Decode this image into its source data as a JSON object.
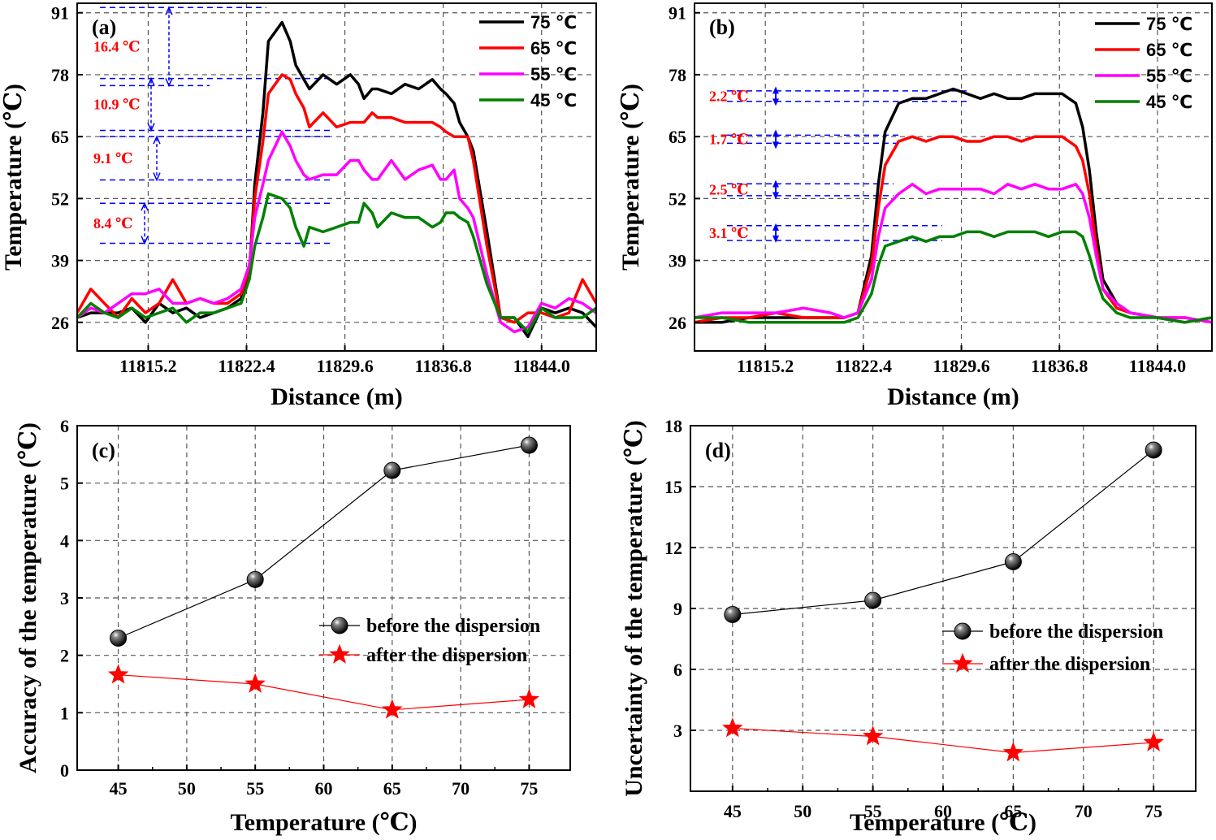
{
  "chart_data": [
    {
      "panel": "(a)",
      "type": "line",
      "xlabel": "Distance (m)",
      "ylabel": "Temperature (℃)",
      "xlim": [
        11810.0,
        11848.0
      ],
      "ylim": [
        20.0,
        93.0
      ],
      "xticks": [
        11815.2,
        11822.4,
        11829.6,
        11836.8,
        11844.0
      ],
      "xtick_labels": [
        "11815.2",
        "11822.4",
        "11829.6",
        "11836.8",
        "11844.0"
      ],
      "yticks": [
        26,
        39,
        52,
        65,
        78,
        91
      ],
      "ytick_labels": [
        "26",
        "39",
        "52",
        "65",
        "78",
        "91"
      ],
      "grid": true,
      "legend": "top-right",
      "series": [
        {
          "name": "75  ℃",
          "color": "#000000",
          "x": [
            11810,
            11811,
            11812,
            11813,
            11814,
            11815,
            11816,
            11817,
            11818,
            11819,
            11820,
            11821,
            11822,
            11822.6,
            11823,
            11823.6,
            11824,
            11825,
            11825.6,
            11826,
            11826.6,
            11827,
            11828,
            11829,
            11830,
            11830.6,
            11831,
            11831.6,
            11832,
            11833,
            11834,
            11835,
            11836,
            11836.6,
            11837,
            11837.6,
            11838,
            11838.6,
            11839,
            11840,
            11841,
            11842,
            11843,
            11844,
            11845,
            11846,
            11847,
            11848
          ],
          "y": [
            27,
            28,
            28,
            28,
            29,
            26,
            30,
            28,
            29,
            27,
            28,
            29,
            31,
            36,
            55,
            70,
            85,
            89,
            85,
            80,
            77,
            75,
            78,
            76,
            78,
            76,
            73,
            75,
            75,
            74,
            76,
            75,
            77,
            75,
            74,
            72,
            68,
            65,
            62,
            45,
            27,
            27,
            23,
            29,
            28,
            29,
            28,
            25
          ]
        },
        {
          "name": "65  ℃",
          "color": "#ff0000",
          "x": [
            11810,
            11811,
            11812,
            11813,
            11814,
            11815,
            11816,
            11817,
            11818,
            11819,
            11820,
            11821,
            11822,
            11822.6,
            11823,
            11823.6,
            11824,
            11825,
            11825.6,
            11826,
            11826.6,
            11827,
            11828,
            11829,
            11830,
            11830.6,
            11831,
            11831.6,
            11832,
            11833,
            11834,
            11835,
            11836,
            11836.6,
            11837,
            11837.6,
            11838,
            11838.6,
            11839,
            11840,
            11841,
            11842,
            11843,
            11844,
            11845,
            11846,
            11847,
            11848
          ],
          "y": [
            28,
            33,
            30,
            27,
            31,
            28,
            30,
            35,
            30,
            31,
            30,
            30,
            32,
            37,
            52,
            64,
            74,
            78,
            77,
            74,
            71,
            67,
            70,
            67,
            68,
            68,
            68,
            70,
            69,
            69,
            68,
            68,
            68,
            67,
            66,
            65,
            65,
            65,
            60,
            42,
            27,
            26,
            28,
            28,
            27,
            28,
            35,
            30
          ]
        },
        {
          "name": "55  ℃",
          "color": "#ff00ff",
          "x": [
            11810,
            11811,
            11812,
            11813,
            11814,
            11815,
            11816,
            11817,
            11818,
            11819,
            11820,
            11821,
            11822,
            11822.6,
            11823,
            11823.6,
            11824,
            11825,
            11825.6,
            11826,
            11826.6,
            11827,
            11828,
            11829,
            11830,
            11830.6,
            11831,
            11831.6,
            11832,
            11833,
            11834,
            11835,
            11836,
            11836.6,
            11837,
            11837.6,
            11838,
            11838.6,
            11839,
            11840,
            11841,
            11842,
            11843,
            11844,
            11845,
            11846,
            11847,
            11848
          ],
          "y": [
            27,
            29,
            28,
            30,
            32,
            32,
            33,
            30,
            30,
            31,
            30,
            31,
            33,
            38,
            48,
            55,
            60,
            66,
            63,
            60,
            57,
            56,
            57,
            57,
            60,
            60,
            58,
            56,
            56,
            60,
            56,
            58,
            59,
            56,
            56,
            58,
            52,
            50,
            48,
            36,
            26,
            24,
            25,
            30,
            29,
            31,
            30,
            28
          ]
        },
        {
          "name": "45  ℃",
          "color": "#008000",
          "x": [
            11810,
            11811,
            11812,
            11813,
            11814,
            11815,
            11816,
            11817,
            11818,
            11819,
            11820,
            11821,
            11822,
            11822.6,
            11823,
            11823.6,
            11824,
            11825,
            11825.6,
            11826,
            11826.6,
            11827,
            11828,
            11829,
            11830,
            11830.6,
            11831,
            11831.6,
            11832,
            11833,
            11834,
            11835,
            11836,
            11836.6,
            11837,
            11837.6,
            11838,
            11838.6,
            11839,
            11840,
            11841,
            11842,
            11843,
            11844,
            11845,
            11846,
            11847,
            11848
          ],
          "y": [
            27,
            30,
            28,
            27,
            29,
            27,
            28,
            29,
            26,
            28,
            28,
            29,
            30,
            35,
            42,
            48,
            53,
            52,
            50,
            46,
            42,
            46,
            45,
            46,
            47,
            47,
            51,
            49,
            46,
            49,
            48,
            48,
            46,
            47,
            49,
            49,
            48,
            47,
            44,
            34,
            27,
            27,
            24,
            29,
            27,
            27,
            27,
            29
          ]
        }
      ],
      "annotations": [
        {
          "text": "16.4 ℃",
          "lower": 75.7,
          "upper": 92.1
        },
        {
          "text": "10.9 ℃",
          "lower": 66.3,
          "upper": 77.2
        },
        {
          "text": "9.1 ℃",
          "lower": 55.9,
          "upper": 65.0
        },
        {
          "text": "8.4 ℃",
          "lower": 42.6,
          "upper": 51.0
        }
      ]
    },
    {
      "panel": "(b)",
      "type": "line",
      "xlabel": "Distance (m)",
      "ylabel": "Temperature (℃)",
      "xlim": [
        11810.0,
        11848.0
      ],
      "ylim": [
        20.0,
        93.0
      ],
      "xticks": [
        11815.2,
        11822.4,
        11829.6,
        11836.8,
        11844.0
      ],
      "xtick_labels": [
        "11815.2",
        "11822.4",
        "11829.6",
        "11836.8",
        "11844.0"
      ],
      "yticks": [
        26,
        39,
        52,
        65,
        78,
        91
      ],
      "ytick_labels": [
        "26",
        "39",
        "52",
        "65",
        "78",
        "91"
      ],
      "grid": true,
      "legend": "top-right",
      "series": [
        {
          "name": "75  ℃",
          "color": "#000000",
          "x": [
            11810,
            11812,
            11814,
            11816,
            11818,
            11820,
            11821,
            11822,
            11823,
            11823.5,
            11824,
            11825,
            11826,
            11827,
            11828,
            11829,
            11830,
            11831,
            11832,
            11833,
            11834,
            11835,
            11836,
            11837,
            11838,
            11838.5,
            11839,
            11839.5,
            11840,
            11841,
            11842,
            11844,
            11846,
            11848
          ],
          "y": [
            26,
            26,
            27,
            27,
            27,
            27,
            27,
            28,
            40,
            55,
            66,
            72,
            73,
            73,
            74,
            75,
            74,
            73,
            74,
            73,
            73,
            74,
            74,
            74,
            72,
            67,
            58,
            45,
            35,
            30,
            28,
            27,
            26,
            27
          ]
        },
        {
          "name": "65  ℃",
          "color": "#ff0000",
          "x": [
            11810,
            11812,
            11814,
            11816,
            11818,
            11820,
            11821,
            11822,
            11823,
            11823.5,
            11824,
            11825,
            11826,
            11827,
            11828,
            11829,
            11830,
            11831,
            11832,
            11833,
            11834,
            11835,
            11836,
            11837,
            11838,
            11838.5,
            11839,
            11839.5,
            11840,
            11841,
            11842,
            11844,
            11846,
            11848
          ],
          "y": [
            26,
            27,
            27,
            28,
            27,
            27,
            27,
            28,
            38,
            50,
            59,
            64,
            65,
            64,
            65,
            65,
            64,
            64,
            65,
            65,
            64,
            65,
            65,
            65,
            63,
            60,
            53,
            42,
            33,
            29,
            28,
            27,
            27,
            26
          ]
        },
        {
          "name": "55  ℃",
          "color": "#ff00ff",
          "x": [
            11810,
            11812,
            11814,
            11816,
            11818,
            11820,
            11821,
            11822,
            11823,
            11823.5,
            11824,
            11825,
            11826,
            11827,
            11828,
            11829,
            11830,
            11831,
            11832,
            11833,
            11834,
            11835,
            11836,
            11837,
            11838,
            11838.5,
            11839,
            11839.5,
            11840,
            11841,
            11842,
            11844,
            11846,
            11848
          ],
          "y": [
            27,
            28,
            28,
            28,
            29,
            28,
            27,
            28,
            35,
            44,
            50,
            53,
            55,
            53,
            54,
            54,
            54,
            54,
            53,
            55,
            54,
            55,
            54,
            54,
            55,
            53,
            48,
            40,
            33,
            30,
            28,
            27,
            27,
            26
          ]
        },
        {
          "name": "45  ℃",
          "color": "#008000",
          "x": [
            11810,
            11812,
            11814,
            11816,
            11818,
            11820,
            11821,
            11822,
            11823,
            11823.5,
            11824,
            11825,
            11826,
            11827,
            11828,
            11829,
            11830,
            11831,
            11832,
            11833,
            11834,
            11835,
            11836,
            11837,
            11838,
            11838.5,
            11839,
            11839.5,
            11840,
            11841,
            11842,
            11844,
            11846,
            11848
          ],
          "y": [
            27,
            27,
            26,
            26,
            26,
            26,
            26,
            27,
            32,
            38,
            42,
            43,
            44,
            43,
            44,
            44,
            45,
            45,
            44,
            45,
            45,
            45,
            44,
            45,
            45,
            44,
            40,
            35,
            31,
            28,
            27,
            27,
            26,
            27
          ]
        }
      ],
      "annotations": [
        {
          "text": "2.2 ℃",
          "lower": 72.4,
          "upper": 74.6
        },
        {
          "text": "1.7 ℃",
          "lower": 63.6,
          "upper": 65.3
        },
        {
          "text": "2.5 ℃",
          "lower": 52.6,
          "upper": 55.1
        },
        {
          "text": "3.1 ℃",
          "lower": 43.2,
          "upper": 46.3
        }
      ]
    },
    {
      "panel": "(c)",
      "type": "line",
      "xlabel": "Temperature (℃)",
      "ylabel": "Accuracy of the temperature  (℃)",
      "xlim": [
        42.0,
        78.0
      ],
      "ylim": [
        0,
        6
      ],
      "xticks": [
        45,
        50,
        55,
        60,
        65,
        70,
        75
      ],
      "xtick_labels": [
        "45",
        "50",
        "55",
        "60",
        "65",
        "70",
        "75"
      ],
      "yticks": [
        0,
        1,
        2,
        3,
        4,
        5,
        6
      ],
      "ytick_labels": [
        "0",
        "1",
        "2",
        "3",
        "4",
        "5",
        "6"
      ],
      "grid": true,
      "legend": "center-right",
      "series": [
        {
          "name": "before the dispersion",
          "color": "#000000",
          "marker": "sphere",
          "x": [
            45,
            55,
            65,
            75
          ],
          "y": [
            2.3,
            3.32,
            5.22,
            5.66
          ]
        },
        {
          "name": "after the dispersion",
          "color": "#ff0000",
          "marker": "star",
          "x": [
            45,
            55,
            65,
            75
          ],
          "y": [
            1.66,
            1.5,
            1.05,
            1.23
          ]
        }
      ]
    },
    {
      "panel": "(d)",
      "type": "line",
      "xlabel": "Temperature (℃)",
      "ylabel": "Uncertainty of the temperature  (℃)",
      "xlim": [
        42.0,
        78.0
      ],
      "ylim": [
        0,
        18
      ],
      "xticks": [
        45,
        50,
        55,
        60,
        65,
        70,
        75
      ],
      "xtick_labels": [
        "45",
        "50",
        "55",
        "60",
        "65",
        "70",
        "75"
      ],
      "yticks": [
        3,
        6,
        9,
        12,
        15,
        18
      ],
      "ytick_labels": [
        "3",
        "6",
        "9",
        "12",
        "15",
        "18"
      ],
      "grid": true,
      "legend": "center-right",
      "series": [
        {
          "name": "before the dispersion",
          "color": "#000000",
          "marker": "sphere",
          "x": [
            45,
            55,
            65,
            75
          ],
          "y": [
            8.7,
            9.4,
            11.3,
            16.8
          ]
        },
        {
          "name": "after the dispersion",
          "color": "#ff0000",
          "marker": "star",
          "x": [
            45,
            55,
            65,
            75
          ],
          "y": [
            3.1,
            2.7,
            1.9,
            2.4
          ]
        }
      ]
    }
  ]
}
